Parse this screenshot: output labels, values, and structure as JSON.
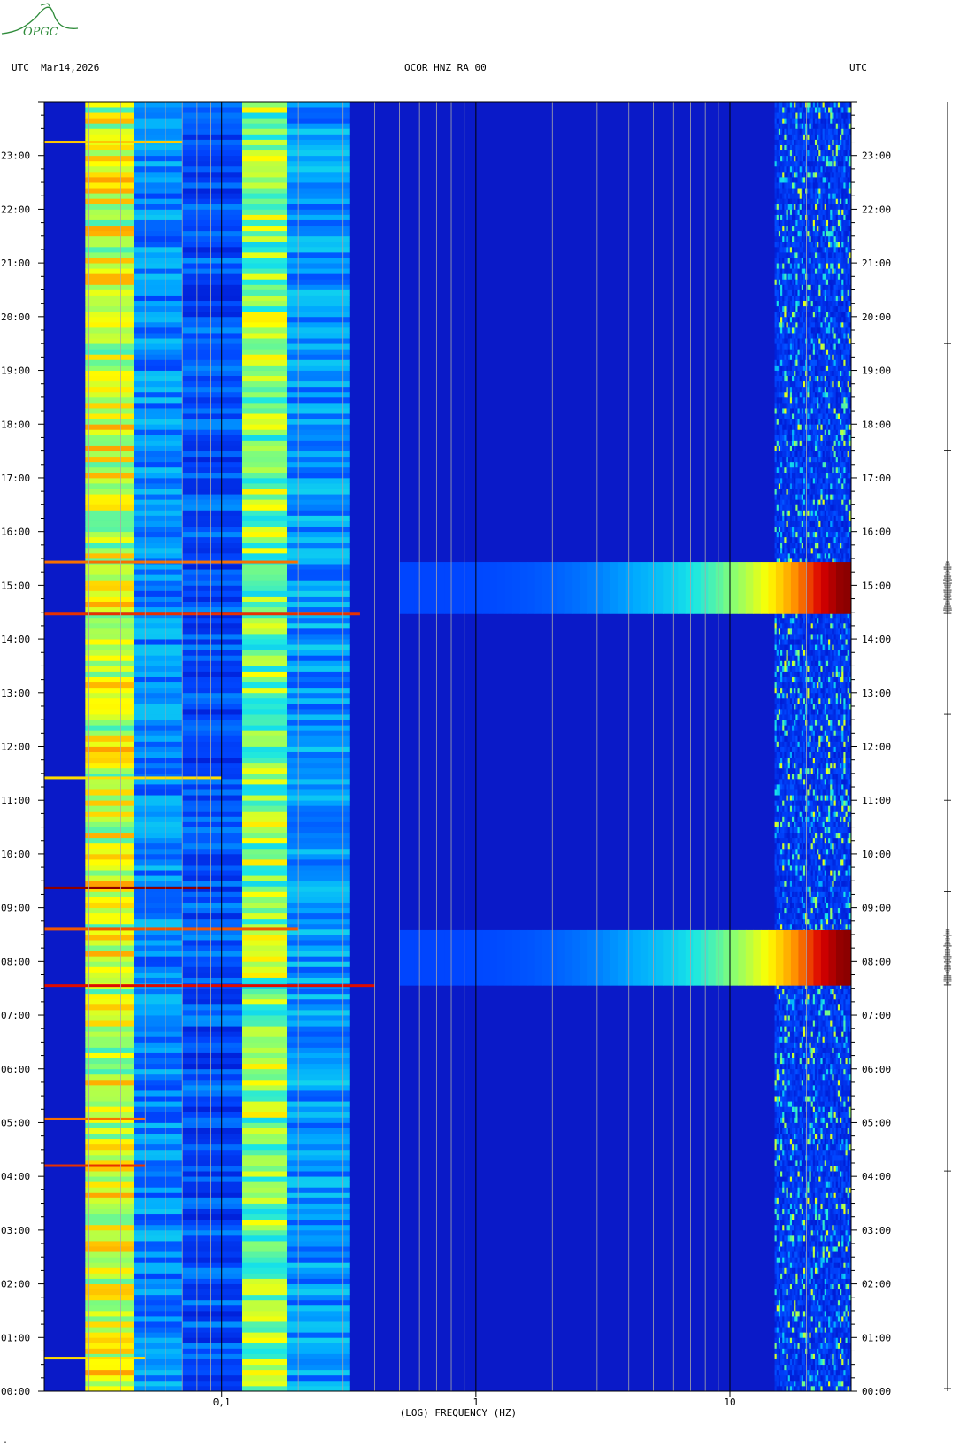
{
  "header": {
    "left": "UTC  Mar14,2026",
    "center": "OCOR HNZ RA 00",
    "right": "UTC"
  },
  "logo": {
    "text": "OPGC",
    "color": "#2e8b3a"
  },
  "colors": {
    "background": "#0a1ac8",
    "gridline": "#a8a8a8",
    "decade_line": "#000000",
    "colormap": [
      "#00008c",
      "#0019d2",
      "#0046ff",
      "#00aaff",
      "#19e6e6",
      "#8cff6e",
      "#ffff00",
      "#ff8c00",
      "#dc0000",
      "#8c0000"
    ]
  },
  "chart_data": {
    "type": "heatmap",
    "title": "OCOR HNZ RA 00",
    "xlabel": "(LOG) FREQUENCY (HZ)",
    "x_scale": "log",
    "xlim": [
      0.02,
      30
    ],
    "x_tick_labels": [
      "0,1",
      "1",
      "10"
    ],
    "y_unit": "UTC",
    "ylim": [
      "00:00",
      "24:00"
    ],
    "y_tick_labels": [
      "23:00",
      "22:00",
      "21:00",
      "20:00",
      "19:00",
      "18:00",
      "17:00",
      "16:00",
      "15:00",
      "14:00",
      "13:00",
      "12:00",
      "11:00",
      "10:00",
      "09:00",
      "08:00",
      "07:00",
      "06:00",
      "05:00",
      "04:00",
      "03:00",
      "02:00",
      "01:00",
      "00:00"
    ],
    "bands": [
      {
        "name": "microseism",
        "f_min": 0.029,
        "f_max": 0.045,
        "intensity": 0.62
      },
      {
        "name": "secondary microseism",
        "f_min": 0.12,
        "f_max": 0.18,
        "intensity": 0.55
      },
      {
        "name": "cultural noise",
        "f_min": 15,
        "f_max": 30,
        "intensity": 0.3
      }
    ],
    "events": [
      {
        "start": "14:28",
        "end": "15:26",
        "f_min": 0.5,
        "f_max": 30,
        "peak_intensity": 1.0
      },
      {
        "start": "07:33",
        "end": "08:35",
        "f_min": 0.5,
        "f_max": 30,
        "peak_intensity": 1.0
      }
    ],
    "bright_lines": [
      {
        "time": "23:15",
        "f_max": 0.07,
        "intensity": 0.72
      },
      {
        "time": "15:26",
        "f_max": 0.2,
        "intensity": 0.8
      },
      {
        "time": "14:28",
        "f_max": 0.35,
        "intensity": 0.85
      },
      {
        "time": "11:25",
        "f_max": 0.1,
        "intensity": 0.7
      },
      {
        "time": "09:22",
        "f_max": 0.09,
        "intensity": 1.0
      },
      {
        "time": "08:36",
        "f_max": 0.2,
        "intensity": 0.82
      },
      {
        "time": "07:33",
        "f_max": 0.4,
        "intensity": 0.88
      },
      {
        "time": "05:04",
        "f_max": 0.05,
        "intensity": 0.8
      },
      {
        "time": "04:12",
        "f_max": 0.05,
        "intensity": 0.85
      },
      {
        "time": "00:37",
        "f_max": 0.05,
        "intensity": 0.7
      }
    ]
  }
}
